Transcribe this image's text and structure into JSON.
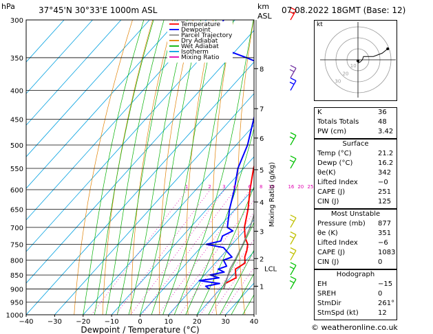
{
  "header": {
    "location": "37°45'N  30°33'E  1000m  ASL",
    "datetime": "07.08.2022  18GMT  (Base: 12)",
    "hpa_label": "hPa",
    "km_label": "km",
    "asl_label": "ASL",
    "footer": "© weatheronline.co.uk"
  },
  "chart_data": {
    "type": "line",
    "title": "Skew-T log-P diagram",
    "xlabel": "Dewpoint / Temperature (°C)",
    "ylabel_right": "Mixing Ratio (g/kg)",
    "x_ticks": [
      -40,
      -30,
      -20,
      -10,
      0,
      10,
      20,
      30,
      40
    ],
    "x_tick_labels": [
      "−40",
      "−30",
      "−20",
      "−10",
      "0",
      "10",
      "20",
      "30",
      "40"
    ],
    "xlim": [
      -40,
      40
    ],
    "pressure_levels": [
      300,
      350,
      400,
      450,
      500,
      550,
      600,
      650,
      700,
      750,
      800,
      850,
      900,
      950,
      1000
    ],
    "ylim": [
      300,
      1000
    ],
    "km_ticks": [
      {
        "km": "8",
        "p": 366
      },
      {
        "km": "7",
        "p": 431
      },
      {
        "km": "6",
        "p": 486
      },
      {
        "km": "5",
        "p": 553
      },
      {
        "km": "4",
        "p": 631
      },
      {
        "km": "3",
        "p": 711
      },
      {
        "km": "2",
        "p": 795
      },
      {
        "km": "1",
        "p": 890
      }
    ],
    "lcl": {
      "label": "LCL",
      "p": 828
    },
    "mixing_ratio_labels": [
      "1",
      "2",
      "3",
      "4",
      "6",
      "8",
      "10",
      "16",
      "20",
      "25"
    ],
    "mixing_ratio_values": [
      1,
      2,
      3,
      4,
      6,
      8,
      10,
      16,
      20,
      25
    ],
    "legend": [
      {
        "name": "Temperature",
        "color": "#ff0000"
      },
      {
        "name": "Dewpoint",
        "color": "#0000ff"
      },
      {
        "name": "Parcel Trajectory",
        "color": "#8c8c8c"
      },
      {
        "name": "Dry Adiabat",
        "color": "#e08000"
      },
      {
        "name": "Wet Adiabat",
        "color": "#00b000"
      },
      {
        "name": "Isotherm",
        "color": "#00a0e0"
      },
      {
        "name": "Mixing Ratio",
        "color": "#e000b0"
      }
    ],
    "series": [
      {
        "name": "Temperature",
        "color": "#ff0000",
        "points": [
          [
            900,
            21.2
          ],
          [
            880,
            20.0
          ],
          [
            860,
            22.0
          ],
          [
            845,
            20.5
          ],
          [
            830,
            19.0
          ],
          [
            810,
            20.5
          ],
          [
            790,
            18.5
          ],
          [
            770,
            17.2
          ],
          [
            750,
            15.5
          ],
          [
            730,
            12.5
          ],
          [
            700,
            9.0
          ],
          [
            650,
            4.5
          ],
          [
            600,
            -1.0
          ],
          [
            550,
            -6.5
          ],
          [
            500,
            -11.5
          ],
          [
            450,
            -17.5
          ],
          [
            400,
            -24.5
          ],
          [
            380,
            -28.0
          ],
          [
            360,
            -32.5
          ],
          [
            350,
            -35.0
          ],
          [
            330,
            -39.0
          ],
          [
            300,
            -44.0
          ]
        ]
      },
      {
        "name": "Dewpoint",
        "color": "#0000ff",
        "points": [
          [
            900,
            16.2
          ],
          [
            890,
            14.0
          ],
          [
            880,
            18.0
          ],
          [
            870,
            10.0
          ],
          [
            860,
            16.0
          ],
          [
            850,
            12.0
          ],
          [
            840,
            16.0
          ],
          [
            830,
            13.0
          ],
          [
            820,
            15.0
          ],
          [
            800,
            12.0
          ],
          [
            790,
            14.0
          ],
          [
            770,
            10.0
          ],
          [
            760,
            8.0
          ],
          [
            750,
            1.0
          ],
          [
            740,
            5.0
          ],
          [
            725,
            4.0
          ],
          [
            710,
            6.0
          ],
          [
            700,
            3.0
          ],
          [
            650,
            -2.0
          ],
          [
            600,
            -6.5
          ],
          [
            550,
            -12.0
          ],
          [
            500,
            -16.0
          ],
          [
            450,
            -22.0
          ],
          [
            400,
            -28.5
          ],
          [
            380,
            -31.5
          ],
          [
            360,
            -36.0
          ],
          [
            350,
            -44.0
          ],
          [
            340,
            -53.0
          ],
          [
            330,
            -60.0
          ],
          [
            300,
            -64.0
          ]
        ]
      },
      {
        "name": "Parcel Trajectory",
        "color": "#8c8c8c",
        "points": [
          [
            900,
            21.2
          ],
          [
            828,
            17.0
          ],
          [
            800,
            16.0
          ],
          [
            750,
            13.8
          ],
          [
            700,
            11.0
          ],
          [
            650,
            7.2
          ],
          [
            600,
            2.6
          ],
          [
            550,
            -2.6
          ],
          [
            500,
            -8.6
          ],
          [
            450,
            -15.0
          ],
          [
            400,
            -22.8
          ],
          [
            350,
            -32.0
          ],
          [
            300,
            -43.0
          ]
        ]
      }
    ]
  },
  "winds": {
    "surface_pressure": 900,
    "barbs": [
      {
        "p": 300,
        "color": "#ff0000"
      },
      {
        "p": 380,
        "color": "#7030a0"
      },
      {
        "p": 400,
        "color": "#0000ff"
      },
      {
        "p": 500,
        "color": "#00c000"
      },
      {
        "p": 550,
        "color": "#00c000"
      },
      {
        "p": 700,
        "color": "#c0c000"
      },
      {
        "p": 750,
        "color": "#c0c000"
      },
      {
        "p": 800,
        "color": "#c0c000"
      },
      {
        "p": 850,
        "color": "#00c000"
      },
      {
        "p": 900,
        "color": "#00c000"
      }
    ]
  },
  "hodograph": {
    "label": "kt",
    "ring_labels": [
      "10",
      "20",
      "30"
    ],
    "trace_uv": [
      [
        0,
        -3
      ],
      [
        2,
        -2
      ],
      [
        4,
        0
      ],
      [
        5,
        3
      ],
      [
        8,
        3
      ],
      [
        14,
        3
      ],
      [
        22,
        6
      ],
      [
        27,
        10
      ]
    ],
    "storm_uv": [
      0,
      -1
    ]
  },
  "indices": {
    "rows": [
      {
        "key": "K",
        "value": "36"
      },
      {
        "key": "Totals Totals",
        "value": "48"
      },
      {
        "key": "PW (cm)",
        "value": "3.42"
      }
    ]
  },
  "surface": {
    "title": "Surface",
    "rows": [
      {
        "key": "Temp (°C)",
        "value": "21.2"
      },
      {
        "key": "Dewp (°C)",
        "value": "16.2"
      },
      {
        "key": "θe(K)",
        "value": "342"
      },
      {
        "key": "Lifted Index",
        "value": "−0"
      },
      {
        "key": "CAPE (J)",
        "value": "251"
      },
      {
        "key": "CIN (J)",
        "value": "125"
      }
    ]
  },
  "most_unstable": {
    "title": "Most Unstable",
    "rows": [
      {
        "key": "Pressure (mb)",
        "value": "877"
      },
      {
        "key": "θe (K)",
        "value": "351"
      },
      {
        "key": "Lifted Index",
        "value": "−6"
      },
      {
        "key": "CAPE (J)",
        "value": "1083"
      },
      {
        "key": "CIN (J)",
        "value": "0"
      }
    ]
  },
  "hodograph_params": {
    "title": "Hodograph",
    "rows": [
      {
        "key": "EH",
        "value": "−15"
      },
      {
        "key": "SREH",
        "value": "0"
      },
      {
        "key": "StmDir",
        "value": "261°"
      },
      {
        "key": "StmSpd (kt)",
        "value": "12"
      }
    ]
  }
}
